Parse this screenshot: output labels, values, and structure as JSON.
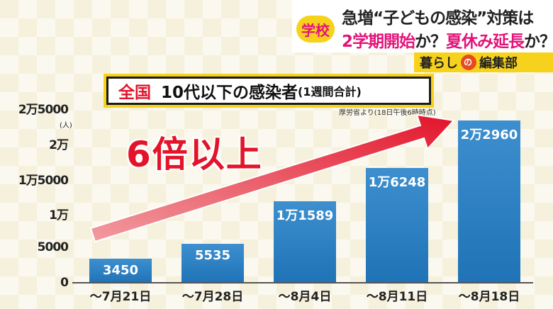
{
  "caption": {
    "tag": "学校",
    "line1": "急増“子どもの感染”対策は",
    "line2_a": "2学期開始",
    "line2_b": "か？",
    "line2_c": "夏休み延長",
    "line2_d": "か？",
    "brand_a": "暮らし",
    "brand_logo": "の",
    "brand_b": "編集部"
  },
  "chart_data": {
    "type": "bar",
    "title_region": "全国",
    "title": "10代以下の感染者",
    "title_note": "(1週間合計)",
    "source": "厚労省より(18日午後6時時点)",
    "unit": "(人)",
    "categories": [
      "～7月21日",
      "～7月28日",
      "～8月4日",
      "～8月11日",
      "～8月18日"
    ],
    "values": [
      3450,
      5535,
      11589,
      16248,
      22960
    ],
    "value_labels": [
      "3450",
      "5535",
      "1万1589",
      "1万6248",
      "2万2960"
    ],
    "y_ticks": [
      {
        "value": 0,
        "label": "0"
      },
      {
        "value": 5000,
        "label": "5000"
      },
      {
        "value": 10000,
        "label": "1万"
      },
      {
        "value": 15000,
        "label": "1万5000"
      },
      {
        "value": 20000,
        "label": "2万"
      },
      {
        "value": 25000,
        "label": "2万5000"
      }
    ],
    "ylim": [
      0,
      25000
    ],
    "annotation": "6倍以上",
    "colors": {
      "bar": "#1f73b6",
      "arrow": "#e3132a"
    }
  }
}
